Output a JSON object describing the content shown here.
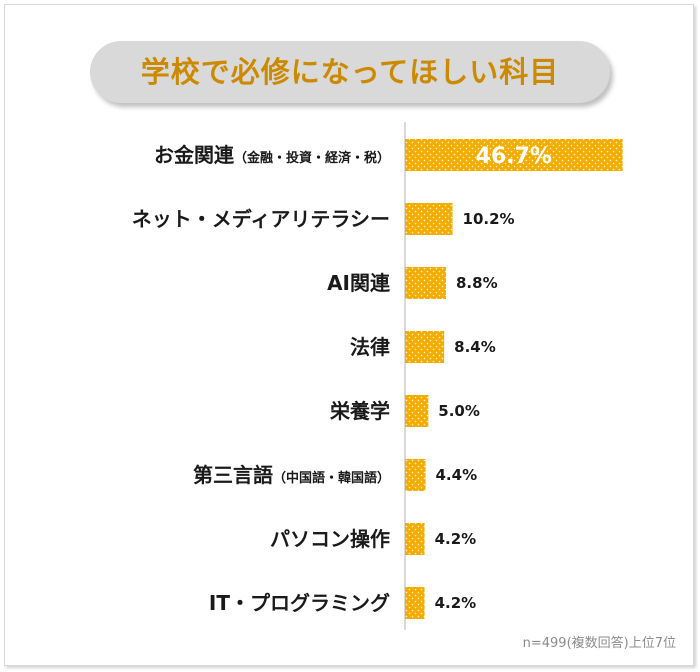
{
  "title": "学校で必修になってほしい科目",
  "note": "n=499(複数回答)上位7位",
  "colors": {
    "bar": "#f2ad00",
    "title_text": "#cc8a00",
    "title_bg": "#d9d9d9",
    "axis": "#d9d9d9",
    "label_text": "#1a1a1a",
    "value_text": "#1a1a1a",
    "top_value_text": "#ffffff"
  },
  "chart_data": {
    "type": "bar",
    "orientation": "horizontal",
    "categories": [
      {
        "main": "お金関連",
        "sub": "（金融・投資・経済・税）"
      },
      {
        "main": "ネット・メディアリテラシー",
        "sub": ""
      },
      {
        "main": "AI関連",
        "sub": ""
      },
      {
        "main": "法律",
        "sub": ""
      },
      {
        "main": "栄養学",
        "sub": ""
      },
      {
        "main": "第三言語",
        "sub": "（中国語・韓国語）"
      },
      {
        "main": "パソコン操作",
        "sub": ""
      },
      {
        "main": "IT・プログラミング",
        "sub": ""
      }
    ],
    "values": [
      46.7,
      10.2,
      8.8,
      8.4,
      5.0,
      4.4,
      4.2,
      4.2
    ],
    "value_labels": [
      "46.7%",
      "10.2%",
      "8.8%",
      "8.4%",
      "5.0%",
      "4.4%",
      "4.2%",
      "4.2%"
    ],
    "unit": "%",
    "xlim": [
      0,
      50
    ],
    "grid": false,
    "legend": "none",
    "bar_pattern": "dotted"
  }
}
